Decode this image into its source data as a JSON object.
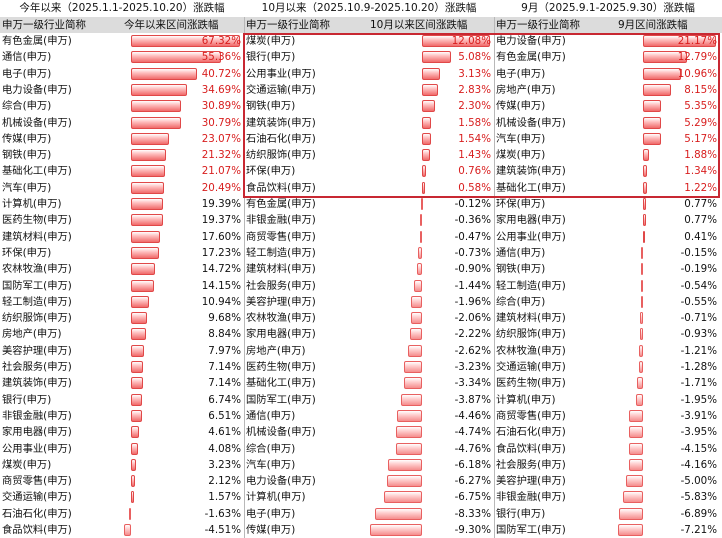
{
  "chart_data": [
    {
      "type": "bar",
      "title": "今年以来（2025.1.1-2025.10.20）涨跌幅",
      "header": {
        "name": "申万一级行业简称",
        "value": "今年以来区间涨跌幅"
      },
      "top_n_highlighted": 10,
      "categories": [
        "有色金属(申万)",
        "通信(申万)",
        "电子(申万)",
        "电力设备(申万)",
        "综合(申万)",
        "机械设备(申万)",
        "传媒(申万)",
        "钢铁(申万)",
        "基础化工(申万)",
        "汽车(申万)",
        "计算机(申万)",
        "医药生物(申万)",
        "建筑材料(申万)",
        "环保(申万)",
        "农林牧渔(申万)",
        "国防军工(申万)",
        "轻工制造(申万)",
        "纺织服饰(申万)",
        "房地产(申万)",
        "美容护理(申万)",
        "社会服务(申万)",
        "建筑装饰(申万)",
        "银行(申万)",
        "非银金融(申万)",
        "家用电器(申万)",
        "公用事业(申万)",
        "煤炭(申万)",
        "商贸零售(申万)",
        "交通运输(申万)",
        "石油石化(申万)",
        "食品饮料(申万)"
      ],
      "values": [
        67.32,
        55.36,
        40.72,
        34.69,
        30.89,
        30.79,
        23.07,
        21.32,
        21.07,
        20.49,
        19.39,
        19.37,
        17.6,
        17.23,
        14.72,
        14.15,
        10.94,
        9.68,
        8.84,
        7.97,
        7.14,
        7.14,
        6.74,
        6.51,
        4.61,
        4.08,
        3.23,
        2.12,
        1.57,
        -1.63,
        -4.51
      ],
      "labels": [
        "67.32%",
        "55.36%",
        "40.72%",
        "34.69%",
        "30.89%",
        "30.79%",
        "23.07%",
        "21.32%",
        "21.07%",
        "20.49%",
        "19.39%",
        "19.37%",
        "17.60%",
        "17.23%",
        "14.72%",
        "14.15%",
        "10.94%",
        "9.68%",
        "8.84%",
        "7.97%",
        "7.14%",
        "7.14%",
        "6.74%",
        "6.51%",
        "4.61%",
        "4.08%",
        "3.23%",
        "2.12%",
        "1.57%",
        "-1.63%",
        "-4.51%"
      ],
      "unit": "%"
    },
    {
      "type": "bar",
      "title": "10月以来（2025.10.9-2025.10.20）涨跌幅",
      "header": {
        "name": "申万一级行业简称",
        "value": "10月以来区间涨跌幅"
      },
      "top_n_highlighted": 10,
      "categories": [
        "煤炭(申万)",
        "银行(申万)",
        "公用事业(申万)",
        "交通运输(申万)",
        "钢铁(申万)",
        "建筑装饰(申万)",
        "石油石化(申万)",
        "纺织服饰(申万)",
        "环保(申万)",
        "食品饮料(申万)",
        "有色金属(申万)",
        "非银金融(申万)",
        "商贸零售(申万)",
        "轻工制造(申万)",
        "建筑材料(申万)",
        "社会服务(申万)",
        "美容护理(申万)",
        "农林牧渔(申万)",
        "家用电器(申万)",
        "房地产(申万)",
        "医药生物(申万)",
        "基础化工(申万)",
        "国防军工(申万)",
        "通信(申万)",
        "机械设备(申万)",
        "综合(申万)",
        "汽车(申万)",
        "电力设备(申万)",
        "计算机(申万)",
        "电子(申万)",
        "传媒(申万)"
      ],
      "values": [
        12.08,
        5.08,
        3.13,
        2.83,
        2.3,
        1.58,
        1.54,
        1.43,
        0.76,
        0.58,
        -0.12,
        -0.36,
        -0.47,
        -0.73,
        -0.9,
        -1.44,
        -1.96,
        -2.06,
        -2.22,
        -2.62,
        -3.23,
        -3.34,
        -3.87,
        -4.46,
        -4.74,
        -4.76,
        -6.18,
        -6.27,
        -6.75,
        -8.33,
        -9.3
      ],
      "labels": [
        "12.08%",
        "5.08%",
        "3.13%",
        "2.83%",
        "2.30%",
        "1.58%",
        "1.54%",
        "1.43%",
        "0.76%",
        "0.58%",
        "-0.12%",
        "-0.36%",
        "-0.47%",
        "-0.73%",
        "-0.90%",
        "-1.44%",
        "-1.96%",
        "-2.06%",
        "-2.22%",
        "-2.62%",
        "-3.23%",
        "-3.34%",
        "-3.87%",
        "-4.46%",
        "-4.74%",
        "-4.76%",
        "-6.18%",
        "-6.27%",
        "-6.75%",
        "-8.33%",
        "-9.30%"
      ],
      "unit": "%"
    },
    {
      "type": "bar",
      "title": "9月（2025.9.1-2025.9.30）涨跌幅",
      "header": {
        "name": "申万一级行业简称",
        "value": "9月区间涨跌幅"
      },
      "top_n_highlighted": 10,
      "categories": [
        "电力设备(申万)",
        "有色金属(申万)",
        "电子(申万)",
        "房地产(申万)",
        "传媒(申万)",
        "机械设备(申万)",
        "汽车(申万)",
        "煤炭(申万)",
        "建筑装饰(申万)",
        "基础化工(申万)",
        "环保(申万)",
        "家用电器(申万)",
        "公用事业(申万)",
        "通信(申万)",
        "钢铁(申万)",
        "轻工制造(申万)",
        "综合(申万)",
        "建筑材料(申万)",
        "纺织服饰(申万)",
        "农林牧渔(申万)",
        "交通运输(申万)",
        "医药生物(申万)",
        "计算机(申万)",
        "商贸零售(申万)",
        "石油石化(申万)",
        "食品饮料(申万)",
        "社会服务(申万)",
        "美容护理(申万)",
        "非银金融(申万)",
        "银行(申万)",
        "国防军工(申万)"
      ],
      "values": [
        21.17,
        12.79,
        10.96,
        8.15,
        5.35,
        5.29,
        5.17,
        1.88,
        1.34,
        1.22,
        0.77,
        0.77,
        0.41,
        -0.15,
        -0.19,
        -0.54,
        -0.55,
        -0.71,
        -0.93,
        -1.21,
        -1.28,
        -1.71,
        -1.95,
        -3.91,
        -3.95,
        -4.15,
        -4.16,
        -5.0,
        -5.83,
        -6.89,
        -7.21
      ],
      "labels": [
        "21.17%",
        "12.79%",
        "10.96%",
        "8.15%",
        "5.35%",
        "5.29%",
        "5.17%",
        "1.88%",
        "1.34%",
        "1.22%",
        "0.77%",
        "0.77%",
        "0.41%",
        "-0.15%",
        "-0.19%",
        "-0.54%",
        "-0.55%",
        "-0.71%",
        "-0.93%",
        "-1.21%",
        "-1.28%",
        "-1.71%",
        "-1.95%",
        "-3.91%",
        "-3.95%",
        "-4.15%",
        "-4.16%",
        "-5.00%",
        "-5.83%",
        "-6.89%",
        "-7.21%"
      ],
      "unit": "%"
    }
  ],
  "colors": {
    "positive_bar": "#f06a6a",
    "bar_border": "#e04848",
    "highlight_box": "#c82832",
    "top_value_text": "#d81e1e",
    "header_bg": "#dcdcdc"
  }
}
